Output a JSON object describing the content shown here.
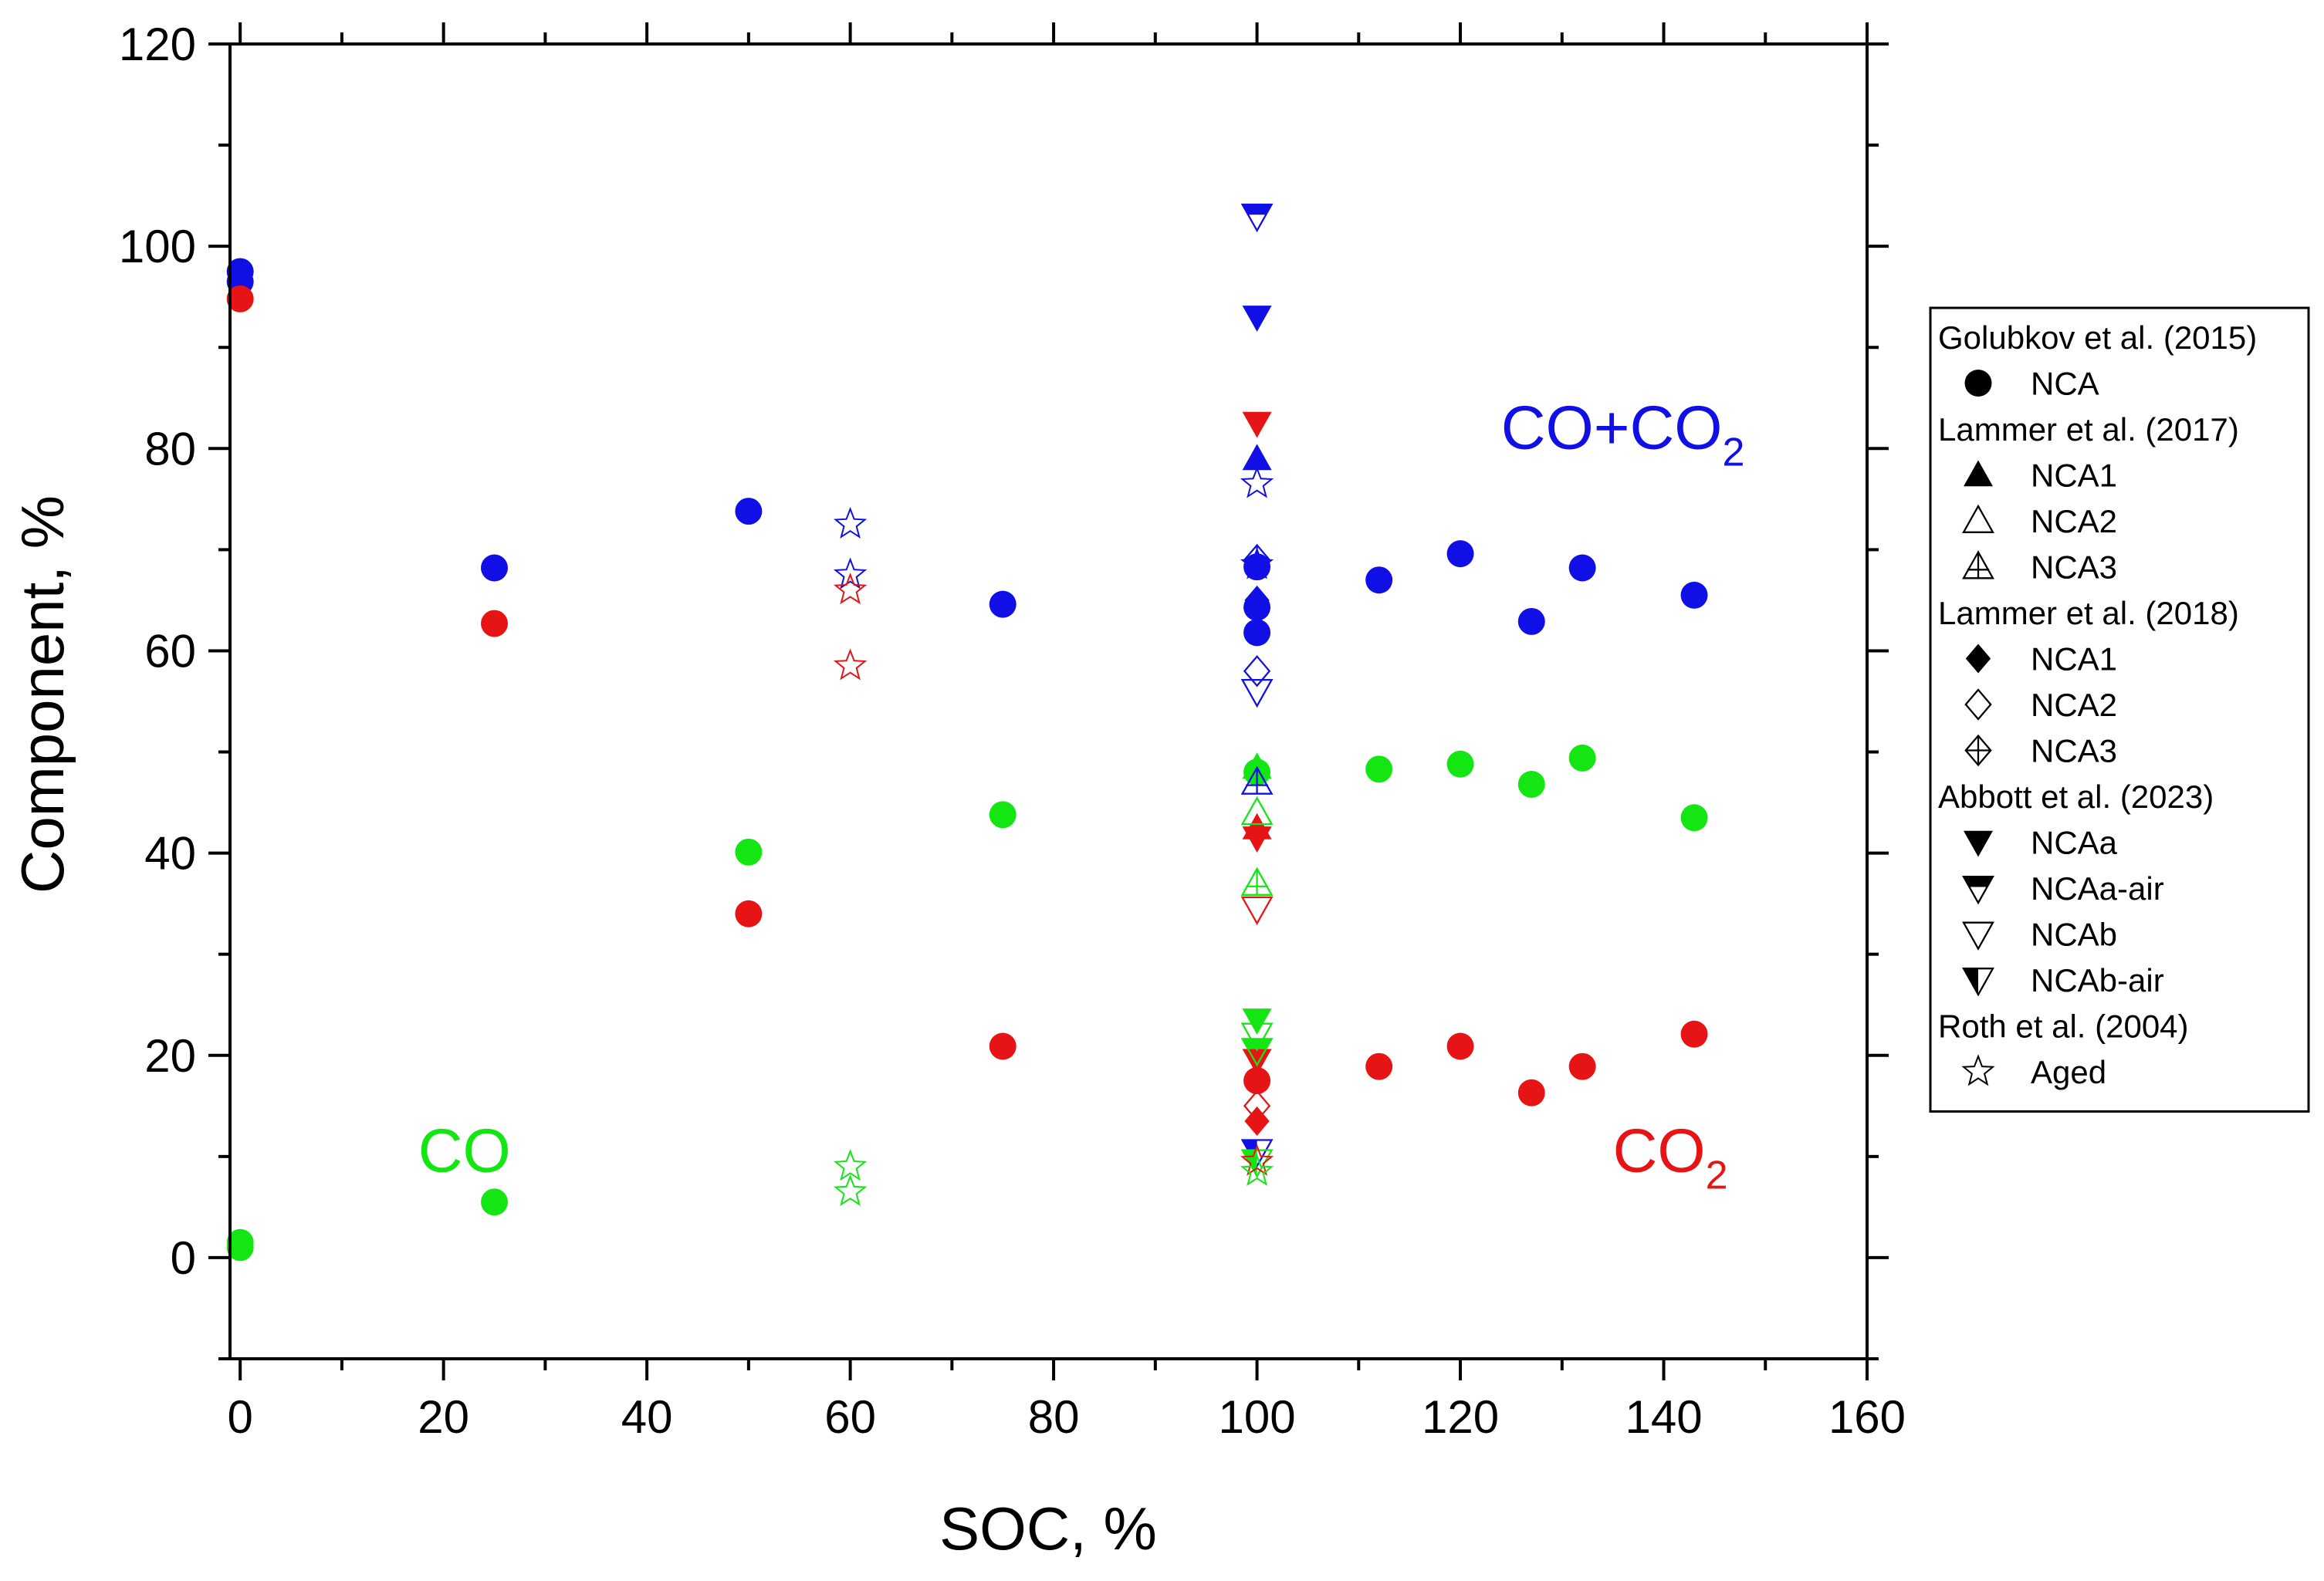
{
  "chart_data": {
    "type": "scatter",
    "title": "",
    "xlabel": "SOC, %",
    "ylabel": "Component, %",
    "xlim": [
      -1,
      160
    ],
    "ylim": [
      -10,
      120
    ],
    "x_ticks": [
      0,
      20,
      40,
      60,
      80,
      100,
      120,
      140,
      160
    ],
    "x_tick_labels": [
      "0",
      "20",
      "40",
      "60",
      "80",
      "100",
      "120",
      "140",
      "160"
    ],
    "y_ticks": [
      0,
      20,
      40,
      60,
      80,
      100,
      120
    ],
    "y_tick_labels": [
      "0",
      "20",
      "40",
      "60",
      "80",
      "100",
      "120"
    ],
    "colors": {
      "co_co2": "#1010e6",
      "co2": "#e61414",
      "co": "#14e614"
    },
    "annotations": [
      {
        "text": "CO+CO",
        "sub": "2",
        "color": "co_co2",
        "x": 124,
        "y": 80
      },
      {
        "text": "CO",
        "sub": "2",
        "color": "co2",
        "x": 135,
        "y": 8.5
      },
      {
        "text": "CO",
        "sub": "",
        "color": "co",
        "x": 17.5,
        "y": 8.5
      }
    ],
    "legend": {
      "position": "right",
      "entries": [
        {
          "kind": "header",
          "label": "Golubkov et al. (2015)"
        },
        {
          "kind": "item",
          "marker": "circle",
          "label": "NCA"
        },
        {
          "kind": "header",
          "label": "Lammer et al. (2017)"
        },
        {
          "kind": "item",
          "marker": "tri-up",
          "label": "NCA1"
        },
        {
          "kind": "item",
          "marker": "tri-up-open",
          "label": "NCA2"
        },
        {
          "kind": "item",
          "marker": "tri-up-cross",
          "label": "NCA3"
        },
        {
          "kind": "header",
          "label": "Lammer et al. (2018)"
        },
        {
          "kind": "item",
          "marker": "diamond",
          "label": "NCA1"
        },
        {
          "kind": "item",
          "marker": "diamond-open",
          "label": "NCA2"
        },
        {
          "kind": "item",
          "marker": "diamond-cross",
          "label": "NCA3"
        },
        {
          "kind": "header",
          "label": "Abbott et al. (2023)"
        },
        {
          "kind": "item",
          "marker": "tri-down",
          "label": "NCAa"
        },
        {
          "kind": "item",
          "marker": "tri-down-half",
          "label": "NCAa-air"
        },
        {
          "kind": "item",
          "marker": "tri-down-open",
          "label": "NCAb"
        },
        {
          "kind": "item",
          "marker": "tri-down-lhalf",
          "label": "NCAb-air"
        },
        {
          "kind": "header",
          "label": "Roth et al. (2004)"
        },
        {
          "kind": "item",
          "marker": "star-open",
          "label": "Aged"
        }
      ]
    },
    "series": [
      {
        "name": "Golubkov et al. (2015) NCA - CO+CO2",
        "marker": "circle",
        "color": "co_co2",
        "points": [
          [
            0,
            97.5
          ],
          [
            0,
            96.5
          ],
          [
            25,
            68.2
          ],
          [
            50,
            73.8
          ],
          [
            75,
            64.6
          ],
          [
            100,
            68.3
          ],
          [
            100,
            64.3
          ],
          [
            100,
            61.8
          ],
          [
            112,
            67.0
          ],
          [
            120,
            69.6
          ],
          [
            127,
            62.9
          ],
          [
            132,
            68.2
          ],
          [
            143,
            65.5
          ]
        ]
      },
      {
        "name": "Golubkov et al. (2015) NCA - CO2",
        "marker": "circle",
        "color": "co2",
        "points": [
          [
            0,
            94.8
          ],
          [
            25,
            62.7
          ],
          [
            50,
            34.0
          ],
          [
            75,
            20.9
          ],
          [
            100,
            17.5
          ],
          [
            112,
            18.9
          ],
          [
            120,
            20.9
          ],
          [
            127,
            16.3
          ],
          [
            132,
            18.9
          ],
          [
            143,
            22.1
          ]
        ]
      },
      {
        "name": "Golubkov et al. (2015) NCA - CO",
        "marker": "circle",
        "color": "co",
        "points": [
          [
            0,
            1.5
          ],
          [
            0,
            1.0
          ],
          [
            25,
            5.5
          ],
          [
            50,
            40.1
          ],
          [
            75,
            43.8
          ],
          [
            100,
            48.0
          ],
          [
            112,
            48.3
          ],
          [
            120,
            48.8
          ],
          [
            127,
            46.8
          ],
          [
            132,
            49.4
          ],
          [
            143,
            43.5
          ]
        ]
      },
      {
        "name": "Lammer et al. (2017) NCA1 - CO+CO2",
        "marker": "tri-up",
        "color": "co_co2",
        "points": [
          [
            100,
            79.0
          ]
        ]
      },
      {
        "name": "Lammer et al. (2017) NCA1 - CO",
        "marker": "tri-up",
        "color": "co",
        "points": [
          [
            100,
            48.5
          ]
        ]
      },
      {
        "name": "Lammer et al. (2017) NCA1 - CO2",
        "marker": "tri-up",
        "color": "co2",
        "points": [
          [
            100,
            42.5
          ]
        ]
      },
      {
        "name": "Lammer et al. (2017) NCA2 - CO",
        "marker": "tri-up-open",
        "color": "co",
        "points": [
          [
            100,
            44.0
          ]
        ]
      },
      {
        "name": "Lammer et al. (2017) NCA3 - CO",
        "marker": "tri-up-cross",
        "color": "co",
        "points": [
          [
            100,
            37.0
          ]
        ]
      },
      {
        "name": "Lammer et al. (2017) NCA3 - CO+CO2",
        "marker": "tri-up-cross",
        "color": "co_co2",
        "points": [
          [
            100,
            47.0
          ]
        ]
      },
      {
        "name": "Lammer et al. (2018) NCA1 - CO+CO2",
        "marker": "diamond",
        "color": "co_co2",
        "points": [
          [
            100,
            65.0
          ]
        ]
      },
      {
        "name": "Lammer et al. (2018) NCA1 - CO2",
        "marker": "diamond",
        "color": "co2",
        "points": [
          [
            100,
            13.5
          ]
        ]
      },
      {
        "name": "Lammer et al. (2018) NCA2 - CO+CO2",
        "marker": "diamond-open",
        "color": "co_co2",
        "points": [
          [
            100,
            58.0
          ]
        ]
      },
      {
        "name": "Lammer et al. (2018) NCA2 - CO2",
        "marker": "diamond-open",
        "color": "co2",
        "points": [
          [
            100,
            15.0
          ]
        ]
      },
      {
        "name": "Lammer et al. (2018) NCA3 - CO+CO2",
        "marker": "diamond-cross",
        "color": "co_co2",
        "points": [
          [
            100,
            69.0
          ]
        ]
      },
      {
        "name": "Abbott et al. (2023) NCAa - CO+CO2",
        "marker": "tri-down",
        "color": "co_co2",
        "points": [
          [
            100,
            93.0
          ]
        ]
      },
      {
        "name": "Abbott et al. (2023) NCAa - CO2",
        "marker": "tri-down",
        "color": "co2",
        "points": [
          [
            100,
            82.5
          ],
          [
            100,
            41.5
          ],
          [
            100,
            19.5
          ]
        ]
      },
      {
        "name": "Abbott et al. (2023) NCAa - CO",
        "marker": "tri-down",
        "color": "co",
        "points": [
          [
            100,
            23.5
          ]
        ]
      },
      {
        "name": "Abbott et al. (2023) NCAa-air - CO+CO2",
        "marker": "tri-down-half",
        "color": "co_co2",
        "points": [
          [
            100,
            103.0
          ]
        ]
      },
      {
        "name": "Abbott et al. (2023) NCAa-air - CO",
        "marker": "tri-down-half",
        "color": "co",
        "points": [
          [
            100,
            20.5
          ]
        ]
      },
      {
        "name": "Abbott et al. (2023) NCAb - CO+CO2",
        "marker": "tri-down-open",
        "color": "co_co2",
        "points": [
          [
            100,
            56.0
          ]
        ]
      },
      {
        "name": "Abbott et al. (2023) NCAb - CO2",
        "marker": "tri-down-open",
        "color": "co2",
        "points": [
          [
            100,
            34.5
          ]
        ]
      },
      {
        "name": "Abbott et al. (2023) NCAb - CO",
        "marker": "tri-down-open",
        "color": "co",
        "points": [
          [
            100,
            22.0
          ]
        ]
      },
      {
        "name": "Abbott et al. (2023) NCAb-air - CO+CO2",
        "marker": "tri-down-lhalf",
        "color": "co_co2",
        "points": [
          [
            100,
            10.5
          ]
        ]
      },
      {
        "name": "Abbott et al. (2023) NCAb-air - CO",
        "marker": "tri-down-lhalf",
        "color": "co",
        "points": [
          [
            100,
            9.5
          ]
        ]
      },
      {
        "name": "Roth et al. (2004) Aged - CO+CO2",
        "marker": "star-open",
        "color": "co_co2",
        "points": [
          [
            60,
            72.5
          ],
          [
            60,
            67.5
          ],
          [
            100,
            76.5
          ],
          [
            100,
            68.5
          ]
        ]
      },
      {
        "name": "Roth et al. (2004) Aged - CO2",
        "marker": "star-open",
        "color": "co2",
        "points": [
          [
            60,
            66.0
          ],
          [
            60,
            58.5
          ],
          [
            100,
            9.5
          ]
        ]
      },
      {
        "name": "Roth et al. (2004) Aged - CO",
        "marker": "star-open",
        "color": "co",
        "points": [
          [
            60,
            9.0
          ],
          [
            60,
            6.5
          ],
          [
            100,
            8.5
          ]
        ]
      }
    ]
  }
}
